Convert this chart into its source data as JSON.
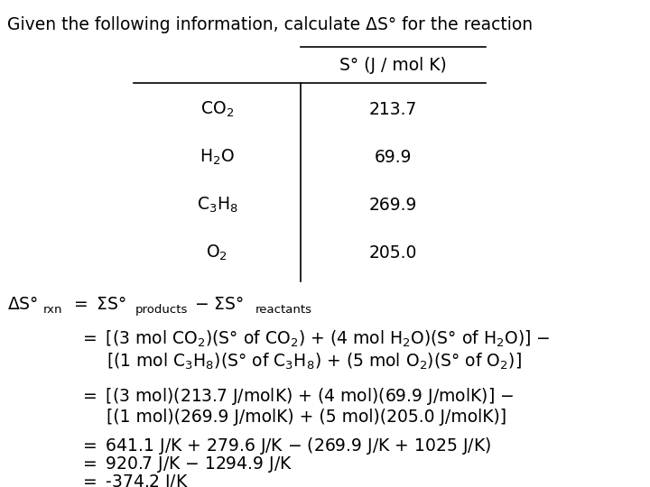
{
  "title": "Given the following information, calculate ΔS° for the reaction",
  "table_header": "S° (J / mol K)",
  "table_col1": [
    "CO₂",
    "H₂O",
    "C₃H₈",
    "O₂"
  ],
  "table_col2": [
    "213.7",
    "69.9",
    "269.9",
    "205.0"
  ],
  "bg_color": "#ffffff",
  "text_color": "#000000",
  "font_size": 13.5,
  "small_font_size": 9.5
}
